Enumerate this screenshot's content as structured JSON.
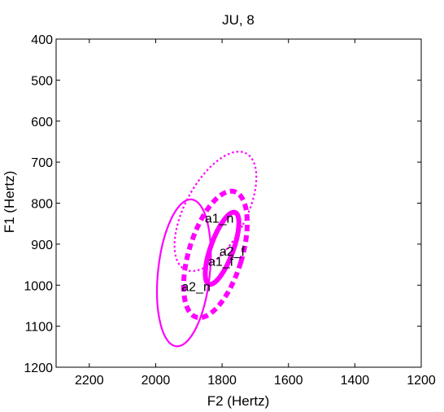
{
  "chart_data": {
    "type": "scatter",
    "title": "JU, 8",
    "xlabel": "F2 (Hertz)",
    "ylabel": "F1 (Hertz)",
    "xlim": [
      2300,
      1200
    ],
    "ylim": [
      400,
      1200
    ],
    "x_reversed": true,
    "y_reversed": true,
    "grid": false,
    "xticks": [
      2200,
      2000,
      1800,
      1600,
      1400,
      1200
    ],
    "yticks": [
      400,
      500,
      600,
      700,
      800,
      900,
      1000,
      1100,
      1200
    ],
    "color": "#ff00ff",
    "series": [
      {
        "label": "a1_n",
        "line_style": "dotted",
        "weight": "thin",
        "ellipse": {
          "center_f2": 1820,
          "center_f1": 820,
          "semi_axis_a": 92,
          "semi_axis_b": 160,
          "rotation_deg": 28
        }
      },
      {
        "label": "a1_f",
        "line_style": "solid",
        "weight": "thick",
        "ellipse": {
          "center_f2": 1800,
          "center_f1": 910,
          "semi_axis_a": 34,
          "semi_axis_b": 93,
          "rotation_deg": 20
        }
      },
      {
        "label": "a2_f",
        "line_style": "dashed",
        "weight": "thick",
        "ellipse": {
          "center_f2": 1820,
          "center_f1": 925,
          "semi_axis_a": 80,
          "semi_axis_b": 160,
          "rotation_deg": 17
        }
      },
      {
        "label": "a2_n",
        "line_style": "solid",
        "weight": "thin",
        "ellipse": {
          "center_f2": 1915,
          "center_f1": 970,
          "semi_axis_a": 78,
          "semi_axis_b": 180,
          "rotation_deg": 6
        }
      }
    ],
    "labels": [
      {
        "text": "a1_n",
        "f2": 1852,
        "f1": 848
      },
      {
        "text": "a2_f",
        "f2": 1808,
        "f1": 928
      },
      {
        "text": "a1_f",
        "f2": 1842,
        "f1": 953
      },
      {
        "text": "a2_n",
        "f2": 1922,
        "f1": 1014
      }
    ]
  }
}
